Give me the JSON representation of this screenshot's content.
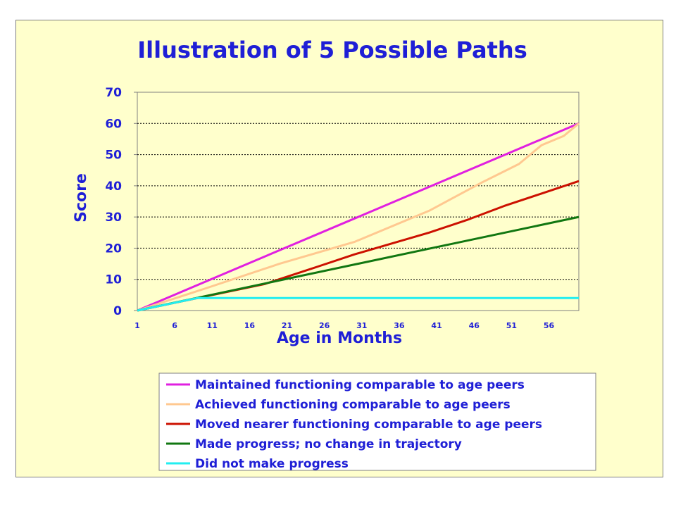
{
  "chart_data": {
    "type": "line",
    "title": "Illustration  of 5 Possible Paths",
    "xlabel": "Age in Months",
    "ylabel": "Score",
    "xlim": [
      1,
      60
    ],
    "ylim": [
      0,
      70
    ],
    "yticks": [
      0,
      10,
      20,
      30,
      40,
      50,
      60,
      70
    ],
    "xticks": [
      1,
      6,
      11,
      16,
      21,
      26,
      31,
      36,
      41,
      46,
      51,
      56
    ],
    "grid": "horizontal dotted",
    "legend_position": "bottom",
    "series": [
      {
        "name": "Maintained functioning comparable to age peers",
        "color": "#e020e0",
        "x": [
          1,
          60
        ],
        "y": [
          0,
          60
        ]
      },
      {
        "name": "Achieved functioning comparable to age peers",
        "color": "#ffc890",
        "x": [
          1,
          10,
          20,
          30,
          40,
          47,
          52,
          55,
          58,
          60
        ],
        "y": [
          0,
          7,
          15,
          22,
          32,
          41,
          47,
          53,
          56,
          60
        ]
      },
      {
        "name": "Moved nearer functioning comparable to age peers",
        "color": "#cc1100",
        "x": [
          1,
          10,
          18,
          25,
          30,
          35,
          40,
          45,
          50,
          55,
          60
        ],
        "y": [
          0,
          4.5,
          8.5,
          14,
          18,
          21.5,
          25,
          29,
          33.5,
          37.5,
          41.5
        ]
      },
      {
        "name": "Made progress; no change in trajectory",
        "color": "#117711",
        "x": [
          1,
          60
        ],
        "y": [
          0,
          30
        ]
      },
      {
        "name": "Did not make progress",
        "color": "#22eef0",
        "x": [
          1,
          9,
          60
        ],
        "y": [
          0,
          4,
          4
        ]
      }
    ]
  }
}
